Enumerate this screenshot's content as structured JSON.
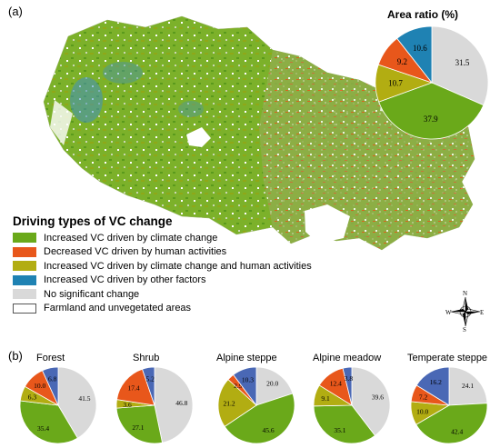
{
  "panel_a": {
    "label": "(a)",
    "area_ratio_title": "Area ratio (%)",
    "area_ratio": [
      {
        "name": "No significant change",
        "value": 31.5,
        "color": "#d9d9d9"
      },
      {
        "name": "Increased VC driven by climate change",
        "value": 37.9,
        "color": "#6aa91a"
      },
      {
        "name": "Increased VC driven by climate change and human activities",
        "value": 10.7,
        "color": "#b2ad12"
      },
      {
        "name": "Decreased VC driven by human activities",
        "value": 9.2,
        "color": "#e8571b"
      },
      {
        "name": "Increased VC driven by other factors",
        "value": 10.6,
        "color": "#1f82b3"
      }
    ],
    "legend_title": "Driving types of VC change",
    "legend": [
      {
        "label": "Increased VC driven by climate change",
        "color": "#6aa91a"
      },
      {
        "label": "Decreased VC driven by human activities",
        "color": "#e8571b"
      },
      {
        "label": "Increased VC driven by climate change and human activities",
        "color": "#b2ad12"
      },
      {
        "label": "Increased VC driven by other factors",
        "color": "#1f82b3"
      },
      {
        "label": "No significant change",
        "color": "#d9d9d9"
      },
      {
        "label": "Farmland and unvegetated areas",
        "color": "#ffffff"
      }
    ],
    "compass": {
      "n": "N",
      "s": "S",
      "e": "E",
      "w": "W"
    }
  },
  "panel_b": {
    "label": "(b)",
    "pies": [
      {
        "title": "Forest",
        "slices": [
          {
            "value": 41.5,
            "color": "#d9d9d9"
          },
          {
            "value": 35.4,
            "color": "#6aa91a"
          },
          {
            "value": 6.3,
            "color": "#b2ad12"
          },
          {
            "value": 10.0,
            "color": "#e8571b"
          },
          {
            "value": 6.8,
            "color": "#4a68b5"
          }
        ]
      },
      {
        "title": "Shrub",
        "slices": [
          {
            "value": 46.8,
            "color": "#d9d9d9"
          },
          {
            "value": 27.1,
            "color": "#6aa91a"
          },
          {
            "value": 3.6,
            "color": "#b2ad12"
          },
          {
            "value": 17.4,
            "color": "#e8571b"
          },
          {
            "value": 5.2,
            "color": "#4a68b5"
          }
        ]
      },
      {
        "title": "Alpine steppe",
        "slices": [
          {
            "value": 20.0,
            "color": "#d9d9d9"
          },
          {
            "value": 45.6,
            "color": "#6aa91a"
          },
          {
            "value": 21.2,
            "color": "#b2ad12"
          },
          {
            "value": 2.9,
            "color": "#e8571b"
          },
          {
            "value": 10.3,
            "color": "#4a68b5"
          }
        ]
      },
      {
        "title": "Alpine meadow",
        "slices": [
          {
            "value": 39.6,
            "color": "#d9d9d9"
          },
          {
            "value": 35.1,
            "color": "#6aa91a"
          },
          {
            "value": 9.1,
            "color": "#b2ad12"
          },
          {
            "value": 12.4,
            "color": "#e8571b"
          },
          {
            "value": 3.8,
            "color": "#4a68b5"
          }
        ]
      },
      {
        "title": "Temperate steppe",
        "slices": [
          {
            "value": 24.1,
            "color": "#d9d9d9"
          },
          {
            "value": 42.4,
            "color": "#6aa91a"
          },
          {
            "value": 10.0,
            "color": "#b2ad12"
          },
          {
            "value": 7.2,
            "color": "#e8571b"
          },
          {
            "value": 16.2,
            "color": "#4a68b5"
          }
        ]
      }
    ]
  }
}
